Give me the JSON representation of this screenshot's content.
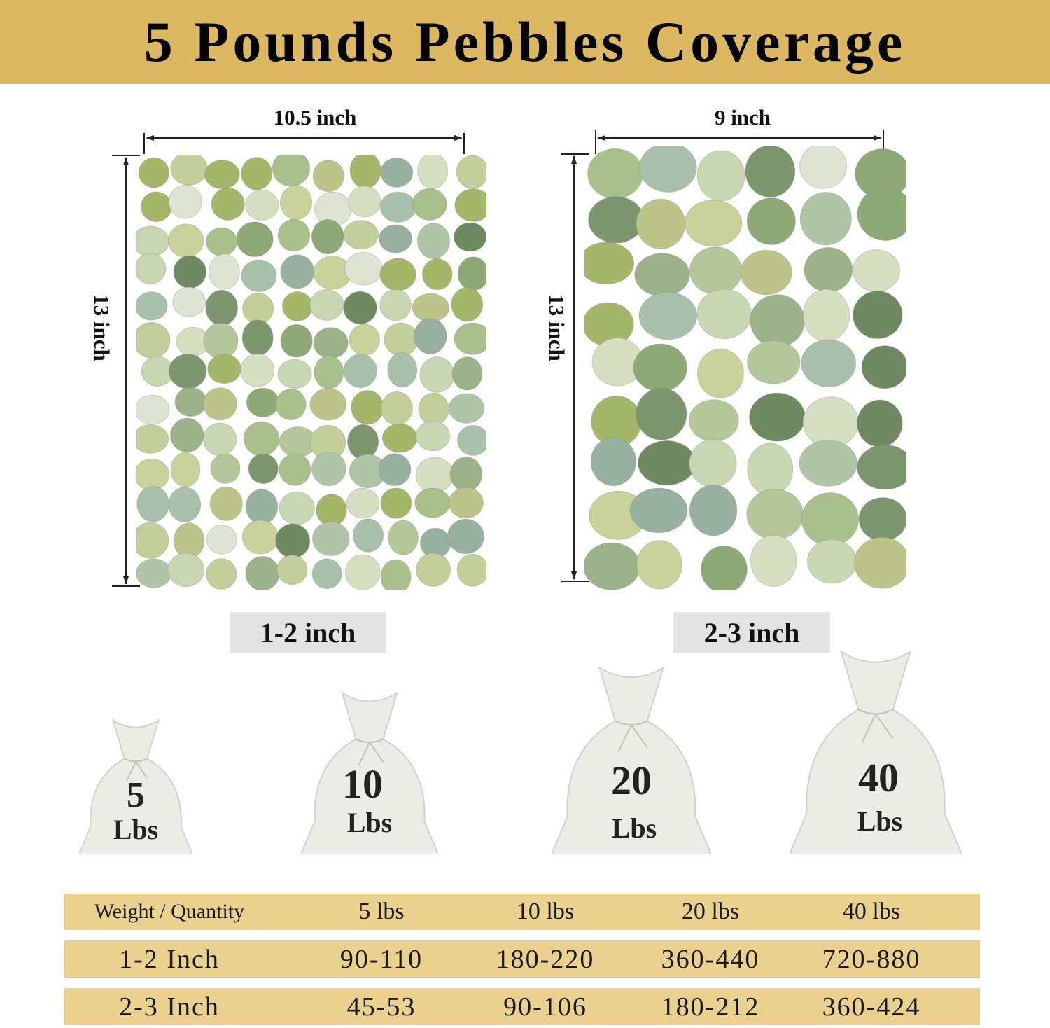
{
  "title": "5 Pounds Pebbles Coverage",
  "colors": {
    "header": "#dcb862",
    "table_row": "#ead18f",
    "size_label_bg": "#e3e3e3"
  },
  "samples": [
    {
      "width_label": "10.5 inch",
      "height_label": "13 inch",
      "size_label": "1-2 inch"
    },
    {
      "width_label": "9 inch",
      "height_label": "13 inch",
      "size_label": "2-3 inch"
    }
  ],
  "bags": [
    {
      "number": "5",
      "unit": "Lbs"
    },
    {
      "number": "10",
      "unit": "Lbs"
    },
    {
      "number": "20",
      "unit": "Lbs"
    },
    {
      "number": "40",
      "unit": "Lbs"
    }
  ],
  "table": {
    "header": [
      "Weight / Quantity",
      "5 lbs",
      "10 lbs",
      "20 lbs",
      "40 lbs"
    ],
    "rows": [
      [
        "1-2 Inch",
        "90-110",
        "180-220",
        "360-440",
        "720-880"
      ],
      [
        "2-3 Inch",
        "45-53",
        "90-106",
        "180-212",
        "360-424"
      ]
    ]
  }
}
